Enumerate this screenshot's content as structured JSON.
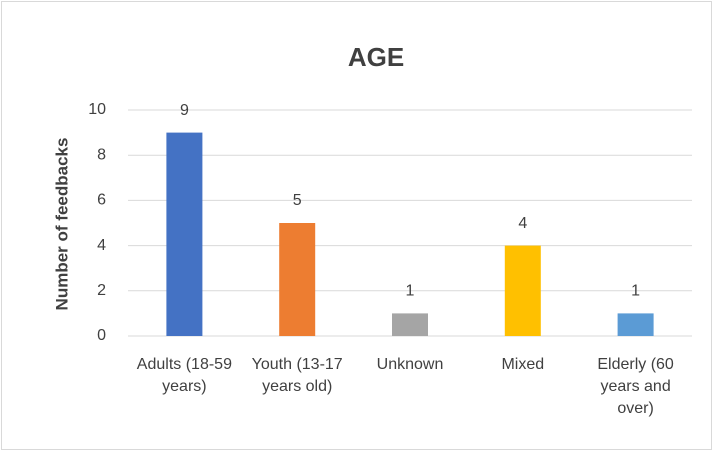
{
  "chart_data": {
    "type": "bar",
    "title": "AGE",
    "y_label": "Number of feedbacks",
    "categories": [
      "Adults (18-59 years)",
      "Youth (13-17 years old)",
      "Unknown",
      "Mixed",
      "Elderly (60 years and over)"
    ],
    "values": [
      9,
      5,
      1,
      4,
      1
    ],
    "colors": [
      "#4472c4",
      "#ed7d31",
      "#a5a5a5",
      "#ffc000",
      "#5b9bd5"
    ],
    "ylim": [
      0,
      10
    ],
    "yticks": [
      0,
      2,
      4,
      6,
      8,
      10
    ],
    "grid": true
  }
}
